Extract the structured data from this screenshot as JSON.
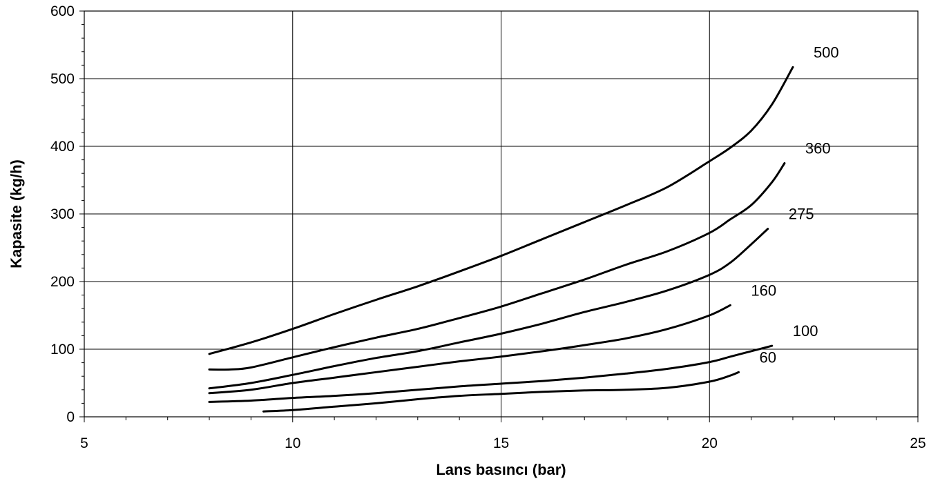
{
  "chart_data": {
    "type": "line",
    "title": "",
    "xlabel": "Lans  basıncı  (bar)",
    "ylabel": "Kapasite (kg/h)",
    "xlim": [
      5,
      25
    ],
    "ylim": [
      0,
      600
    ],
    "x_ticks": [
      "5",
      "10",
      "15",
      "20",
      "25"
    ],
    "y_ticks": [
      "0",
      "100",
      "200",
      "300",
      "400",
      "500",
      "600"
    ],
    "x_minor_step": 1,
    "y_minor_step": 20,
    "grid": true,
    "legend": "none",
    "line_color": "#000000",
    "series": [
      {
        "name": "500",
        "x": [
          8,
          9,
          10,
          11,
          12,
          13,
          14,
          15,
          16,
          17,
          18,
          19,
          20,
          20.5,
          21,
          21.5,
          22
        ],
        "y": [
          93,
          110,
          130,
          152,
          173,
          193,
          215,
          238,
          263,
          288,
          313,
          340,
          378,
          398,
          423,
          462,
          517
        ]
      },
      {
        "name": "360",
        "x": [
          8,
          8.5,
          9,
          10,
          11,
          12,
          13,
          14,
          15,
          16,
          17,
          18,
          19,
          20,
          20.5,
          21,
          21.5,
          21.8
        ],
        "y": [
          70,
          70,
          73,
          88,
          103,
          117,
          130,
          146,
          163,
          183,
          203,
          225,
          245,
          272,
          292,
          313,
          347,
          375
        ]
      },
      {
        "name": "275",
        "x": [
          8,
          9,
          10,
          11,
          12,
          13,
          14,
          15,
          16,
          17,
          18,
          19,
          20,
          20.5,
          21,
          21.4
        ],
        "y": [
          42,
          50,
          62,
          75,
          87,
          97,
          110,
          123,
          138,
          155,
          170,
          187,
          210,
          228,
          255,
          278
        ]
      },
      {
        "name": "160",
        "x": [
          8,
          9,
          10,
          11,
          12,
          13,
          14,
          15,
          16,
          17,
          18,
          19,
          20,
          20.5
        ],
        "y": [
          35,
          40,
          50,
          58,
          66,
          74,
          82,
          89,
          97,
          106,
          116,
          130,
          150,
          165
        ]
      },
      {
        "name": "100",
        "x": [
          8,
          9,
          10,
          11,
          12,
          13,
          14,
          15,
          16,
          17,
          18,
          19,
          20,
          20.5,
          21,
          21.5
        ],
        "y": [
          22,
          24,
          28,
          31,
          35,
          40,
          45,
          49,
          53,
          58,
          64,
          71,
          81,
          89,
          97,
          105
        ]
      },
      {
        "name": "60",
        "x": [
          9.3,
          10,
          11,
          12,
          13,
          14,
          15,
          16,
          17,
          18,
          19,
          20,
          20.5,
          20.7
        ],
        "y": [
          8,
          10,
          15,
          20,
          26,
          31,
          34,
          37,
          39,
          40,
          43,
          52,
          61,
          66
        ]
      }
    ]
  }
}
